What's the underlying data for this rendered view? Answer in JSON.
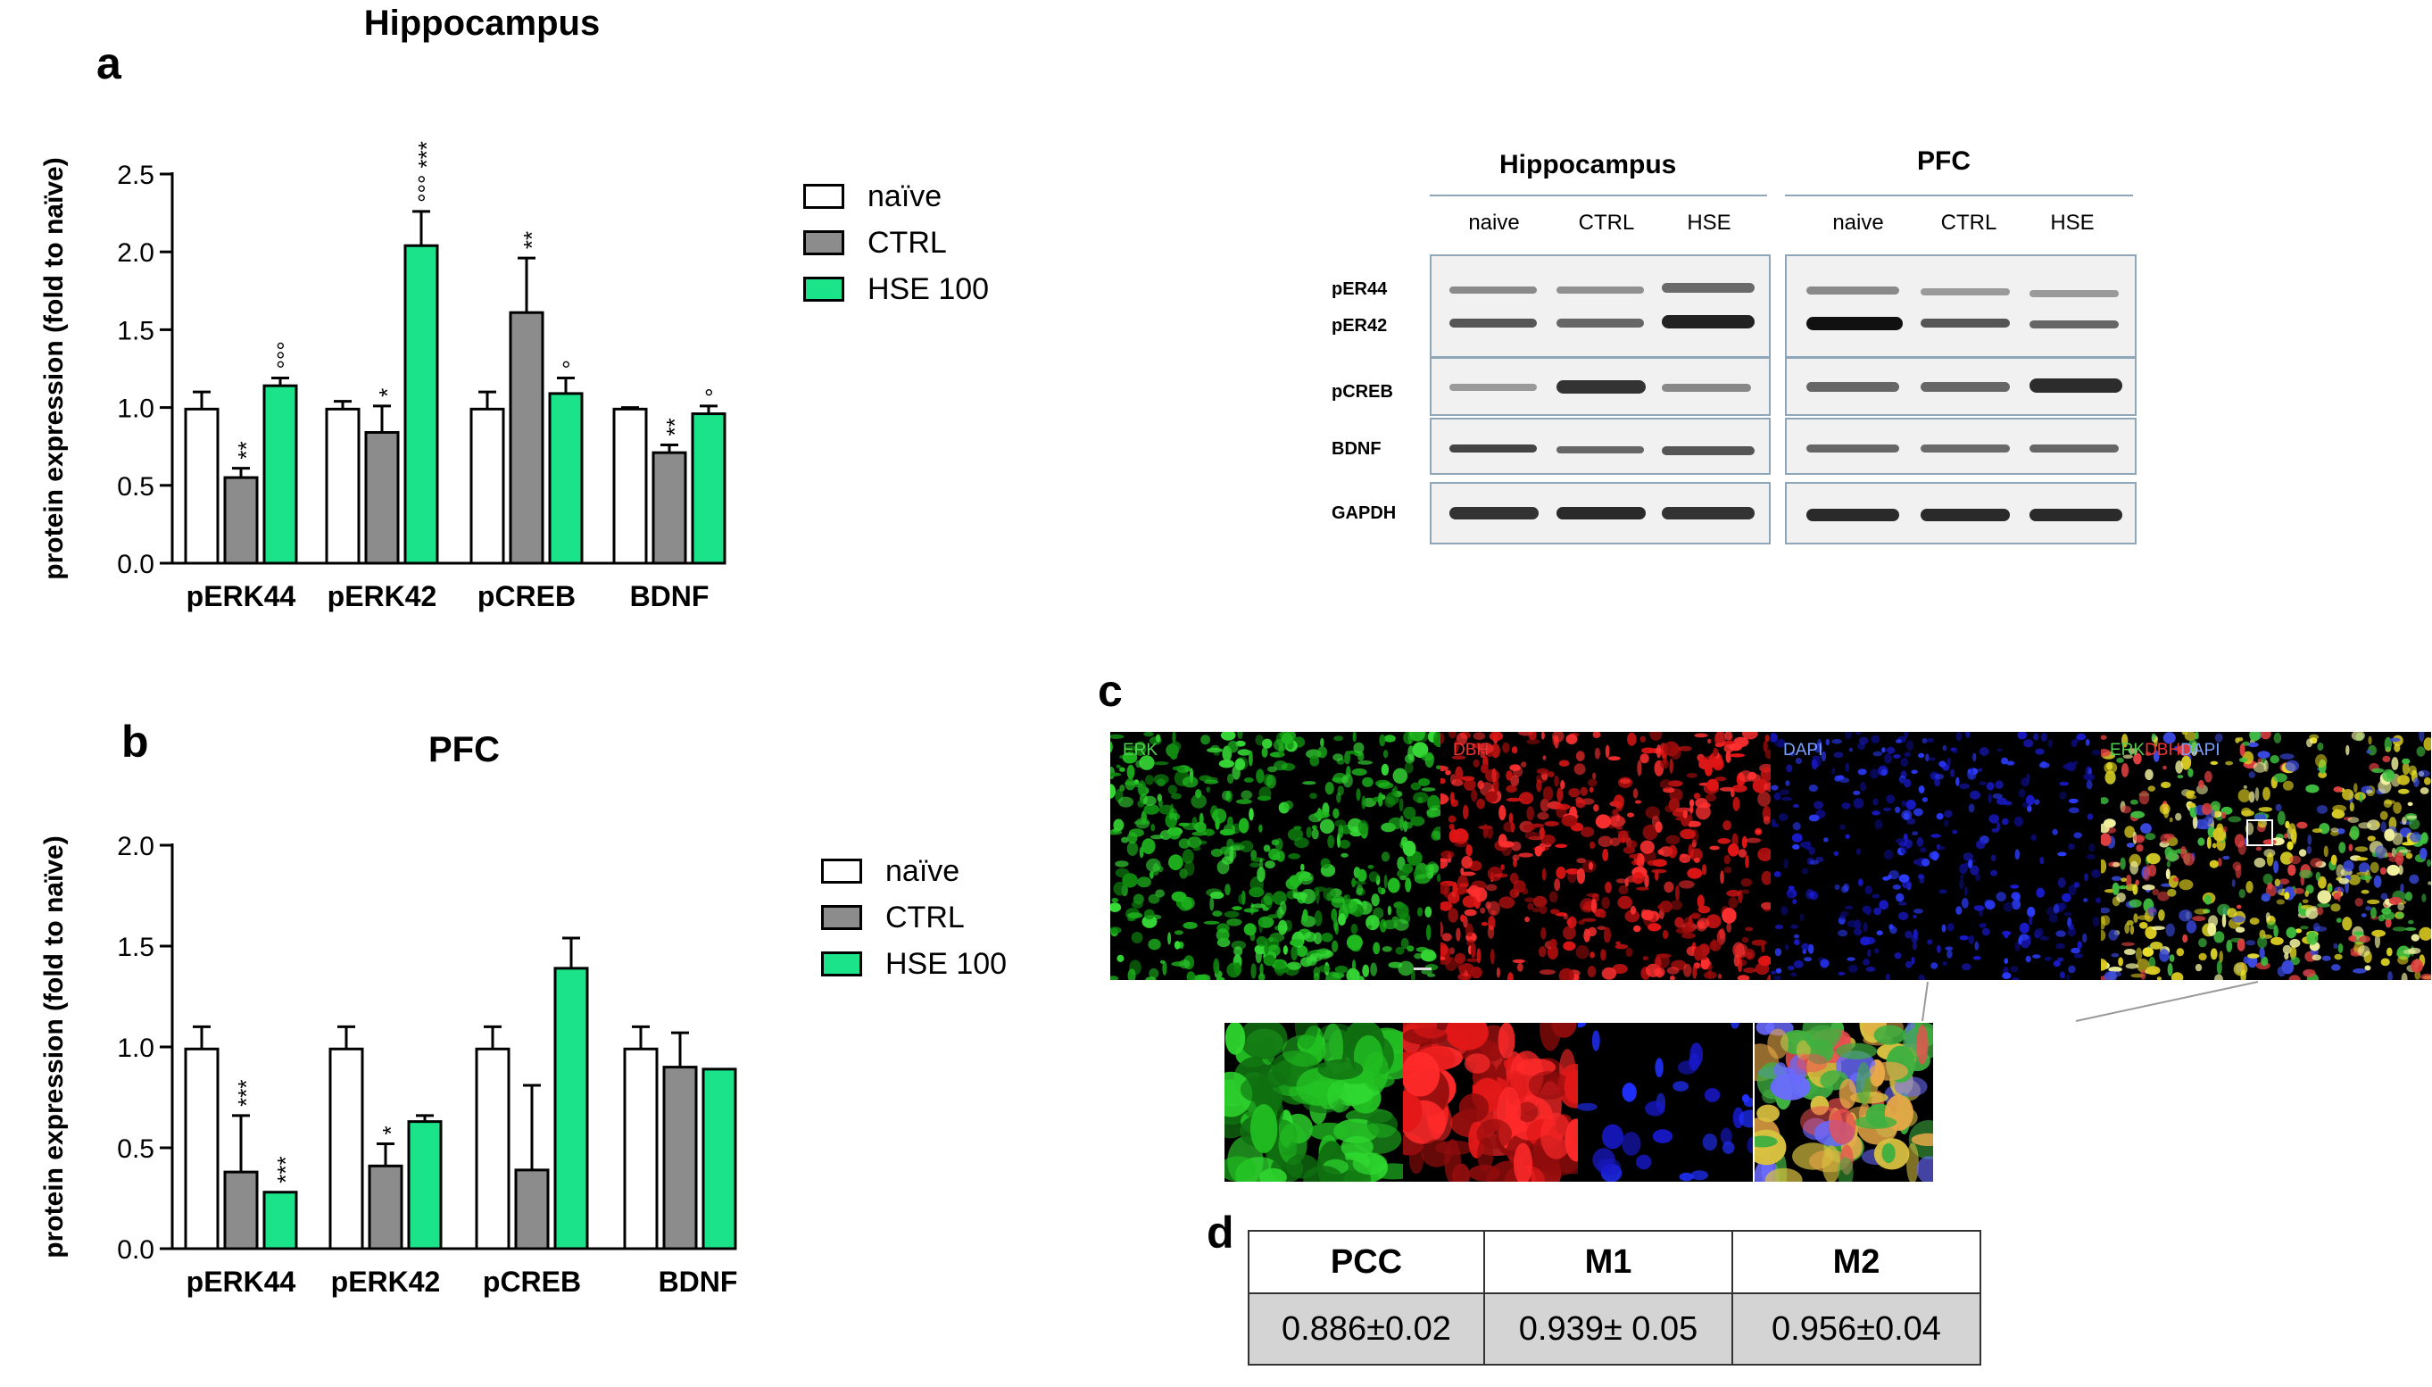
{
  "panels": {
    "a": "a",
    "b": "b",
    "c": "c",
    "d": "d"
  },
  "colors": {
    "naive": "#ffffff",
    "ctrl": "#8c8c8c",
    "hse": "#1be38a",
    "edge": "#000000"
  },
  "chart_data": [
    {
      "type": "bar",
      "id": "hippocampus",
      "title": "Hippocampus",
      "ylabel": "protein expression (fold to naïve)",
      "xlabel": "",
      "ylim": [
        0,
        2.5
      ],
      "yticks": [
        "0.0",
        "0.5",
        "1.0",
        "1.5",
        "2.0",
        "2.5"
      ],
      "categories": [
        "pERK44",
        "pERK42",
        "pCREB",
        "BDNF"
      ],
      "series": [
        {
          "name": "naïve",
          "values": [
            0.99,
            0.99,
            0.99,
            0.99
          ],
          "errors": [
            0.11,
            0.05,
            0.11,
            0.01
          ]
        },
        {
          "name": "CTRL",
          "values": [
            0.55,
            0.84,
            1.61,
            0.71
          ],
          "errors": [
            0.06,
            0.17,
            0.35,
            0.05
          ]
        },
        {
          "name": "HSE 100",
          "values": [
            1.14,
            2.04,
            1.09,
            0.96
          ],
          "errors": [
            0.05,
            0.22,
            0.1,
            0.05
          ]
        }
      ],
      "annotations": [
        {
          "category": 0,
          "series": 1,
          "text": "**"
        },
        {
          "category": 0,
          "series": 2,
          "text": "°°°"
        },
        {
          "category": 1,
          "series": 1,
          "text": "*"
        },
        {
          "category": 1,
          "series": 2,
          "text": "°°° ***"
        },
        {
          "category": 2,
          "series": 1,
          "text": "**"
        },
        {
          "category": 2,
          "series": 2,
          "text": "°"
        },
        {
          "category": 3,
          "series": 1,
          "text": "**"
        },
        {
          "category": 3,
          "series": 2,
          "text": "°"
        }
      ],
      "legend": [
        "naïve",
        "CTRL",
        "HSE 100"
      ]
    },
    {
      "type": "bar",
      "id": "pfc",
      "title": "PFC",
      "ylabel": "protein expression (fold to naïve)",
      "xlabel": "",
      "ylim": [
        0,
        2.0
      ],
      "yticks": [
        "0.0",
        "0.5",
        "1.0",
        "1.5",
        "2.0"
      ],
      "categories": [
        "pERK44",
        "pERK42",
        "pCREB",
        "BDNF"
      ],
      "series": [
        {
          "name": "naïve",
          "values": [
            0.99,
            0.99,
            0.99,
            0.99
          ],
          "errors": [
            0.11,
            0.11,
            0.11,
            0.11
          ]
        },
        {
          "name": "CTRL",
          "values": [
            0.38,
            0.41,
            0.39,
            0.9
          ],
          "errors": [
            0.28,
            0.11,
            0.42,
            0.17
          ]
        },
        {
          "name": "HSE 100",
          "values": [
            0.28,
            0.63,
            1.39,
            0.89
          ],
          "errors": [
            0.0,
            0.03,
            0.15,
            0.0
          ]
        }
      ],
      "annotations": [
        {
          "category": 0,
          "series": 1,
          "text": "***"
        },
        {
          "category": 0,
          "series": 2,
          "text": "***"
        },
        {
          "category": 1,
          "series": 1,
          "text": "*"
        }
      ],
      "legend": [
        "naïve",
        "CTRL",
        "HSE 100"
      ]
    }
  ],
  "blot": {
    "group_titles": [
      "Hippocampus",
      "PFC"
    ],
    "lanes": [
      "naive",
      "CTRL",
      "HSE",
      "naive",
      "CTRL",
      "HSE"
    ],
    "rows": [
      "pER44",
      "pER42",
      "pCREB",
      "BDNF",
      "GAPDH"
    ]
  },
  "micro": {
    "labels": [
      "ERK",
      "DBH",
      "DAPI"
    ],
    "merge_label": [
      "ERK",
      "DBH",
      "DAPI"
    ]
  },
  "coloc_table": {
    "headers": [
      "PCC",
      "M1",
      "M2"
    ],
    "values": [
      "0.886±0.02",
      "0.939± 0.05",
      "0.956±0.04"
    ]
  }
}
